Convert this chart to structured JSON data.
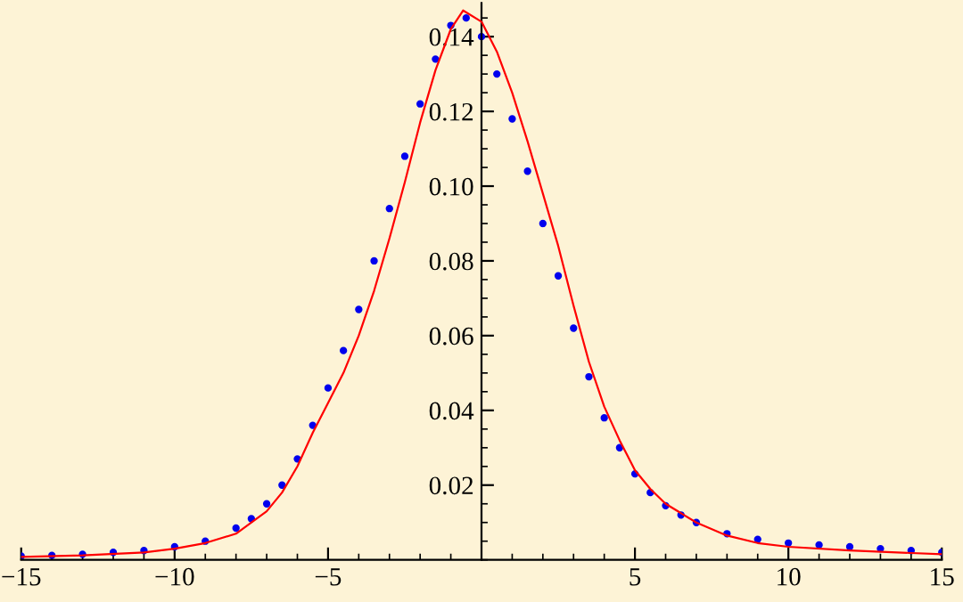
{
  "chart_data": {
    "type": "scatter",
    "xlim": [
      -15,
      15
    ],
    "ylim": [
      0,
      0.149
    ],
    "xticks": [
      -15,
      -10,
      -5,
      5,
      10,
      15
    ],
    "yticks": [
      {
        "value": 0.02,
        "label": "0.02"
      },
      {
        "value": 0.04,
        "label": "0.04"
      },
      {
        "value": 0.06,
        "label": "0.06"
      },
      {
        "value": 0.08,
        "label": "0.08"
      },
      {
        "value": 0.1,
        "label": "0.10"
      },
      {
        "value": 0.12,
        "label": "0.12"
      },
      {
        "value": 0.14,
        "label": "0.14"
      }
    ],
    "grid": false,
    "marker": "circle",
    "series": [
      {
        "color": "#0000ee",
        "x": [
          -15,
          -14,
          -13,
          -12,
          -11,
          -10,
          -9,
          -8,
          -7.5,
          -7,
          -6.5,
          -6,
          -5.5,
          -5,
          -4.5,
          -4,
          -3.5,
          -3,
          -2.5,
          -2,
          -1.5,
          -1,
          -0.5,
          0,
          0.5,
          1,
          1.5,
          2,
          2.5,
          3,
          3.5,
          4,
          4.5,
          5,
          5.5,
          6,
          6.5,
          7,
          8,
          9,
          10,
          11,
          12,
          13,
          14,
          15
        ],
        "values": [
          0.001,
          0.0012,
          0.0015,
          0.002,
          0.0025,
          0.0035,
          0.005,
          0.0085,
          0.011,
          0.015,
          0.02,
          0.027,
          0.036,
          0.046,
          0.056,
          0.067,
          0.08,
          0.094,
          0.108,
          0.122,
          0.134,
          0.143,
          0.145,
          0.14,
          0.13,
          0.118,
          0.104,
          0.09,
          0.076,
          0.062,
          0.049,
          0.038,
          0.03,
          0.023,
          0.018,
          0.0145,
          0.012,
          0.01,
          0.007,
          0.0055,
          0.0045,
          0.004,
          0.0035,
          0.003,
          0.0025,
          0.002
        ]
      },
      {
        "type": "line",
        "color": "#ff0000",
        "line_style": "solid",
        "marker": "none",
        "x": [
          -15,
          -13,
          -11,
          -10,
          -9,
          -8,
          -7,
          -6.5,
          -6,
          -5.5,
          -5,
          -4.5,
          -4,
          -3.5,
          -3,
          -2.5,
          -2,
          -1.5,
          -1,
          -0.6,
          0,
          0.5,
          1,
          1.5,
          2,
          2.5,
          3,
          3.5,
          4,
          4.5,
          5,
          5.5,
          6,
          7,
          8,
          9,
          10,
          12,
          15
        ],
        "values": [
          0.0008,
          0.0012,
          0.002,
          0.003,
          0.0045,
          0.007,
          0.013,
          0.018,
          0.025,
          0.034,
          0.042,
          0.05,
          0.06,
          0.072,
          0.086,
          0.101,
          0.117,
          0.131,
          0.142,
          0.147,
          0.144,
          0.136,
          0.125,
          0.112,
          0.098,
          0.084,
          0.068,
          0.053,
          0.041,
          0.032,
          0.024,
          0.019,
          0.015,
          0.01,
          0.0065,
          0.0045,
          0.0035,
          0.0025,
          0.0015
        ]
      }
    ]
  }
}
